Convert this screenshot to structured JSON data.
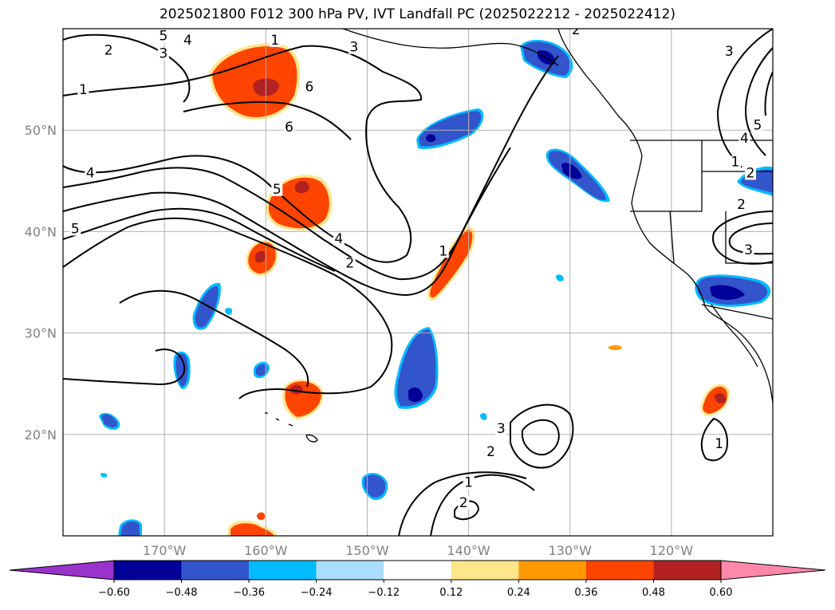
{
  "title": "2025021800 F012 300 hPa PV, IVT Landfall PC (2025022212 - 2025022412)",
  "map": {
    "lon_range": [
      -180,
      -110
    ],
    "lat_range": [
      10,
      60
    ],
    "lat_ticks": [
      {
        "value": 20,
        "label": "20°N"
      },
      {
        "value": 30,
        "label": "30°N"
      },
      {
        "value": 40,
        "label": "40°N"
      },
      {
        "value": 50,
        "label": "50°N"
      }
    ],
    "lon_ticks": [
      {
        "value": -170,
        "label": "170°W"
      },
      {
        "value": -160,
        "label": "160°W"
      },
      {
        "value": -150,
        "label": "150°W"
      },
      {
        "value": -140,
        "label": "140°W"
      },
      {
        "value": -130,
        "label": "130°W"
      },
      {
        "value": -120,
        "label": "120°W"
      }
    ],
    "gridlines": true,
    "grid_color": "#b0b0b0",
    "pv_contour_levels_labeled": [
      "1",
      "2",
      "3",
      "4",
      "5",
      "6"
    ],
    "contour_labels": [
      {
        "text": "5",
        "lon": -170.1,
        "lat": 59.0
      },
      {
        "text": "4",
        "lon": -167.7,
        "lat": 58.6
      },
      {
        "text": "3",
        "lon": -170.1,
        "lat": 57.3
      },
      {
        "text": "2",
        "lon": -175.5,
        "lat": 57.6
      },
      {
        "text": "1",
        "lon": -178.0,
        "lat": 53.7
      },
      {
        "text": "4",
        "lon": -177.3,
        "lat": 45.5
      },
      {
        "text": "5",
        "lon": -178.8,
        "lat": 40.0
      },
      {
        "text": "1",
        "lon": -159.1,
        "lat": 58.6
      },
      {
        "text": "3",
        "lon": -151.3,
        "lat": 57.9
      },
      {
        "text": "6",
        "lon": -155.7,
        "lat": 54.0
      },
      {
        "text": "6",
        "lon": -157.7,
        "lat": 50.0
      },
      {
        "text": "5",
        "lon": -158.9,
        "lat": 43.9
      },
      {
        "text": "4",
        "lon": -152.8,
        "lat": 39.0
      },
      {
        "text": "2",
        "lon": -151.7,
        "lat": 36.6
      },
      {
        "text": "1",
        "lon": -142.5,
        "lat": 37.8
      },
      {
        "text": "2",
        "lon": -129.4,
        "lat": 59.6
      },
      {
        "text": "3",
        "lon": -114.3,
        "lat": 57.5
      },
      {
        "text": "5",
        "lon": -111.5,
        "lat": 50.2
      },
      {
        "text": "4",
        "lon": -112.8,
        "lat": 48.9
      },
      {
        "text": "1",
        "lon": -113.7,
        "lat": 46.6
      },
      {
        "text": "2",
        "lon": -112.2,
        "lat": 45.5
      },
      {
        "text": "2",
        "lon": -113.1,
        "lat": 42.4
      },
      {
        "text": "3",
        "lon": -112.4,
        "lat": 37.9
      },
      {
        "text": "3",
        "lon": -136.8,
        "lat": 20.3
      },
      {
        "text": "2",
        "lon": -137.8,
        "lat": 18.0
      },
      {
        "text": "1",
        "lon": -140.0,
        "lat": 15.0
      },
      {
        "text": "2",
        "lon": -140.5,
        "lat": 13.0
      },
      {
        "text": "1",
        "lon": -115.3,
        "lat": 18.8
      }
    ]
  },
  "colorbar": {
    "levels": [
      "−0.60",
      "−0.48",
      "−0.36",
      "−0.24",
      "−0.12",
      "0.12",
      "0.24",
      "0.36",
      "0.48",
      "0.60"
    ],
    "colors": [
      "#9933cc",
      "#000099",
      "#3355cc",
      "#00bbff",
      "#aaddff",
      "#ffffff",
      "#ffe68a",
      "#ff9900",
      "#ff4400",
      "#b22222",
      "#ff88aa"
    ],
    "extend": "both"
  },
  "colors": {
    "neg_strong": "#000099",
    "neg_mid": "#3355cc",
    "neg_light": "#00bbff",
    "pos_light": "#ffe68a",
    "pos_mid": "#ff9900",
    "pos_strong": "#ff4400",
    "pos_max": "#b22222"
  }
}
